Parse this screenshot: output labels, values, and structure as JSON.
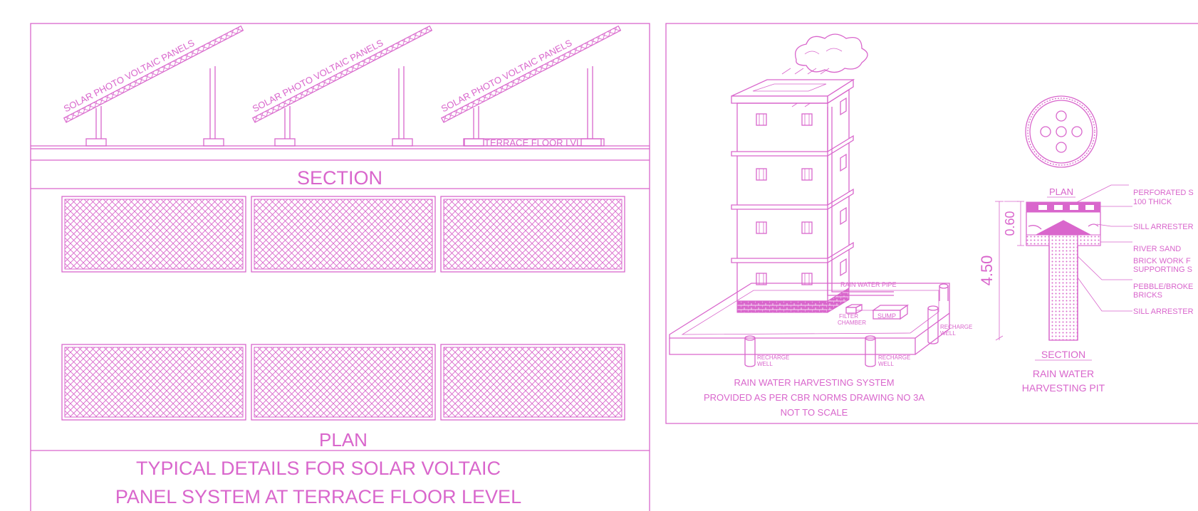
{
  "solar": {
    "panel_label": "SOLAR PHOTO VOLTAIC PANELS",
    "terrace_label": "TERRACE FLOOR LVL",
    "section_title": "SECTION",
    "plan_title": "PLAN",
    "title_line1": "TYPICAL DETAILS FOR SOLAR VOLTAIC",
    "title_line2": "PANEL SYSTEM AT TERRACE FLOOR LEVEL"
  },
  "rwh": {
    "pipe_label": "RAIN WATER PIPE",
    "sump_label": "SUMP",
    "filter_line1": "FILTER",
    "filter_line2": "CHAMBER",
    "recharge_line1": "RECHARGE",
    "recharge_line2": "WELL",
    "caption_line1": "RAIN WATER HARVESTING SYSTEM",
    "caption_line2": "PROVIDED AS PER CBR NORMS DRAWING NO 3A",
    "caption_line3": "NOT TO SCALE"
  },
  "pit": {
    "plan_label": "PLAN",
    "section_label": "SECTION",
    "title_line1": "RAIN WATER",
    "title_line2": "HARVESTING PIT",
    "dim_total": "4.50",
    "dim_top": "0.60",
    "callouts": [
      "PERFORATED S",
      "100 THICK",
      "SILL ARRESTER",
      "RIVER SAND",
      "BRICK WORK F",
      "SUPPORTING S",
      "PEBBLE/BROKE",
      "BRICKS",
      "SILL ARRESTER"
    ]
  },
  "colors": {
    "line": "#d966cc",
    "background": "#ffffff"
  }
}
